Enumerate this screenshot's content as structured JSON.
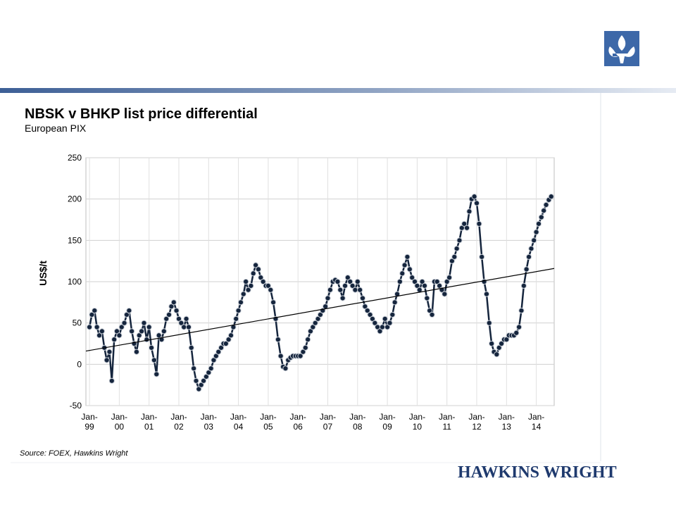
{
  "brand": "HAWKINS WRIGHT",
  "chart_data": {
    "type": "line",
    "title": "NBSK v BHKP list price differential",
    "subtitle": "European PIX",
    "y_label": "US$/t",
    "source": "Source: FOEX, Hawkins Wright",
    "color": "#15253d",
    "grid": true,
    "xlim": [
      1998.88,
      2014.6
    ],
    "ylim": [
      -50,
      250
    ],
    "yticks": [
      -50,
      0,
      50,
      100,
      150,
      200,
      250
    ],
    "xticks": [
      {
        "value": 1999,
        "label": "Jan-99"
      },
      {
        "value": 2000,
        "label": "Jan-00"
      },
      {
        "value": 2001,
        "label": "Jan-01"
      },
      {
        "value": 2002,
        "label": "Jan-02"
      },
      {
        "value": 2003,
        "label": "Jan-03"
      },
      {
        "value": 2004,
        "label": "Jan-04"
      },
      {
        "value": 2005,
        "label": "Jan-05"
      },
      {
        "value": 2006,
        "label": "Jan-06"
      },
      {
        "value": 2007,
        "label": "Jan-07"
      },
      {
        "value": 2008,
        "label": "Jan-08"
      },
      {
        "value": 2009,
        "label": "Jan-09"
      },
      {
        "value": 2010,
        "label": "Jan-10"
      },
      {
        "value": 2011,
        "label": "Jan-11"
      },
      {
        "value": 2012,
        "label": "Jan-12"
      },
      {
        "value": 2013,
        "label": "Jan-13"
      },
      {
        "value": 2014,
        "label": "Jan-14"
      }
    ],
    "x": [
      1999.0,
      1999.08,
      1999.17,
      1999.25,
      1999.33,
      1999.42,
      1999.5,
      1999.58,
      1999.67,
      1999.75,
      1999.83,
      1999.92,
      2000.0,
      2000.08,
      2000.17,
      2000.25,
      2000.33,
      2000.42,
      2000.5,
      2000.58,
      2000.67,
      2000.75,
      2000.83,
      2000.92,
      2001.0,
      2001.08,
      2001.17,
      2001.25,
      2001.33,
      2001.42,
      2001.5,
      2001.58,
      2001.67,
      2001.75,
      2001.83,
      2001.92,
      2002.0,
      2002.08,
      2002.17,
      2002.25,
      2002.33,
      2002.42,
      2002.5,
      2002.58,
      2002.67,
      2002.75,
      2002.83,
      2002.92,
      2003.0,
      2003.08,
      2003.17,
      2003.25,
      2003.33,
      2003.42,
      2003.5,
      2003.58,
      2003.67,
      2003.75,
      2003.83,
      2003.92,
      2004.0,
      2004.08,
      2004.17,
      2004.25,
      2004.33,
      2004.42,
      2004.5,
      2004.58,
      2004.67,
      2004.75,
      2004.83,
      2004.92,
      2005.0,
      2005.08,
      2005.17,
      2005.25,
      2005.33,
      2005.42,
      2005.5,
      2005.58,
      2005.67,
      2005.75,
      2005.83,
      2005.92,
      2006.0,
      2006.08,
      2006.17,
      2006.25,
      2006.33,
      2006.42,
      2006.5,
      2006.58,
      2006.67,
      2006.75,
      2006.83,
      2006.92,
      2007.0,
      2007.08,
      2007.17,
      2007.25,
      2007.33,
      2007.42,
      2007.5,
      2007.58,
      2007.67,
      2007.75,
      2007.83,
      2007.92,
      2008.0,
      2008.08,
      2008.17,
      2008.25,
      2008.33,
      2008.42,
      2008.5,
      2008.58,
      2008.67,
      2008.75,
      2008.83,
      2008.92,
      2009.0,
      2009.08,
      2009.17,
      2009.25,
      2009.33,
      2009.42,
      2009.5,
      2009.58,
      2009.67,
      2009.75,
      2009.83,
      2009.92,
      2010.0,
      2010.08,
      2010.17,
      2010.25,
      2010.33,
      2010.42,
      2010.5,
      2010.58,
      2010.67,
      2010.75,
      2010.83,
      2010.92,
      2011.0,
      2011.08,
      2011.17,
      2011.25,
      2011.33,
      2011.42,
      2011.5,
      2011.58,
      2011.67,
      2011.75,
      2011.83,
      2011.92,
      2012.0,
      2012.08,
      2012.17,
      2012.25,
      2012.33,
      2012.42,
      2012.5,
      2012.58,
      2012.67,
      2012.75,
      2012.83,
      2012.92,
      2013.0,
      2013.08,
      2013.17,
      2013.25,
      2013.33,
      2013.42,
      2013.5,
      2013.58,
      2013.67,
      2013.75,
      2013.83,
      2013.92,
      2014.0,
      2014.08,
      2014.17,
      2014.25,
      2014.33,
      2014.42,
      2014.5
    ],
    "values": [
      45,
      60,
      65,
      45,
      35,
      40,
      20,
      5,
      15,
      -20,
      30,
      40,
      35,
      45,
      50,
      60,
      65,
      40,
      25,
      15,
      35,
      40,
      50,
      30,
      45,
      20,
      5,
      -12,
      35,
      30,
      40,
      55,
      60,
      70,
      75,
      65,
      55,
      50,
      45,
      55,
      45,
      20,
      -5,
      -20,
      -30,
      -25,
      -20,
      -15,
      -10,
      -5,
      5,
      10,
      15,
      20,
      25,
      25,
      30,
      35,
      45,
      55,
      65,
      75,
      85,
      100,
      90,
      95,
      110,
      120,
      115,
      105,
      100,
      95,
      95,
      90,
      75,
      55,
      30,
      10,
      -3,
      -5,
      5,
      8,
      10,
      10,
      10,
      10,
      15,
      20,
      30,
      40,
      45,
      50,
      55,
      60,
      65,
      70,
      80,
      90,
      100,
      102,
      100,
      90,
      80,
      95,
      105,
      100,
      95,
      90,
      100,
      90,
      80,
      70,
      65,
      60,
      55,
      50,
      45,
      40,
      45,
      55,
      45,
      50,
      60,
      75,
      85,
      100,
      110,
      120,
      130,
      115,
      105,
      100,
      95,
      90,
      100,
      95,
      80,
      65,
      60,
      100,
      100,
      95,
      90,
      85,
      100,
      105,
      125,
      130,
      140,
      150,
      165,
      170,
      165,
      185,
      200,
      203,
      195,
      170,
      130,
      100,
      85,
      50,
      25,
      15,
      12,
      20,
      25,
      30,
      30,
      35,
      35,
      35,
      38,
      45,
      65,
      95,
      115,
      130,
      140,
      150,
      160,
      170,
      178,
      186,
      193,
      199,
      203
    ],
    "trend": {
      "color": "#000000",
      "x": [
        1998.88,
        2014.6
      ],
      "values": [
        16,
        116
      ]
    }
  }
}
